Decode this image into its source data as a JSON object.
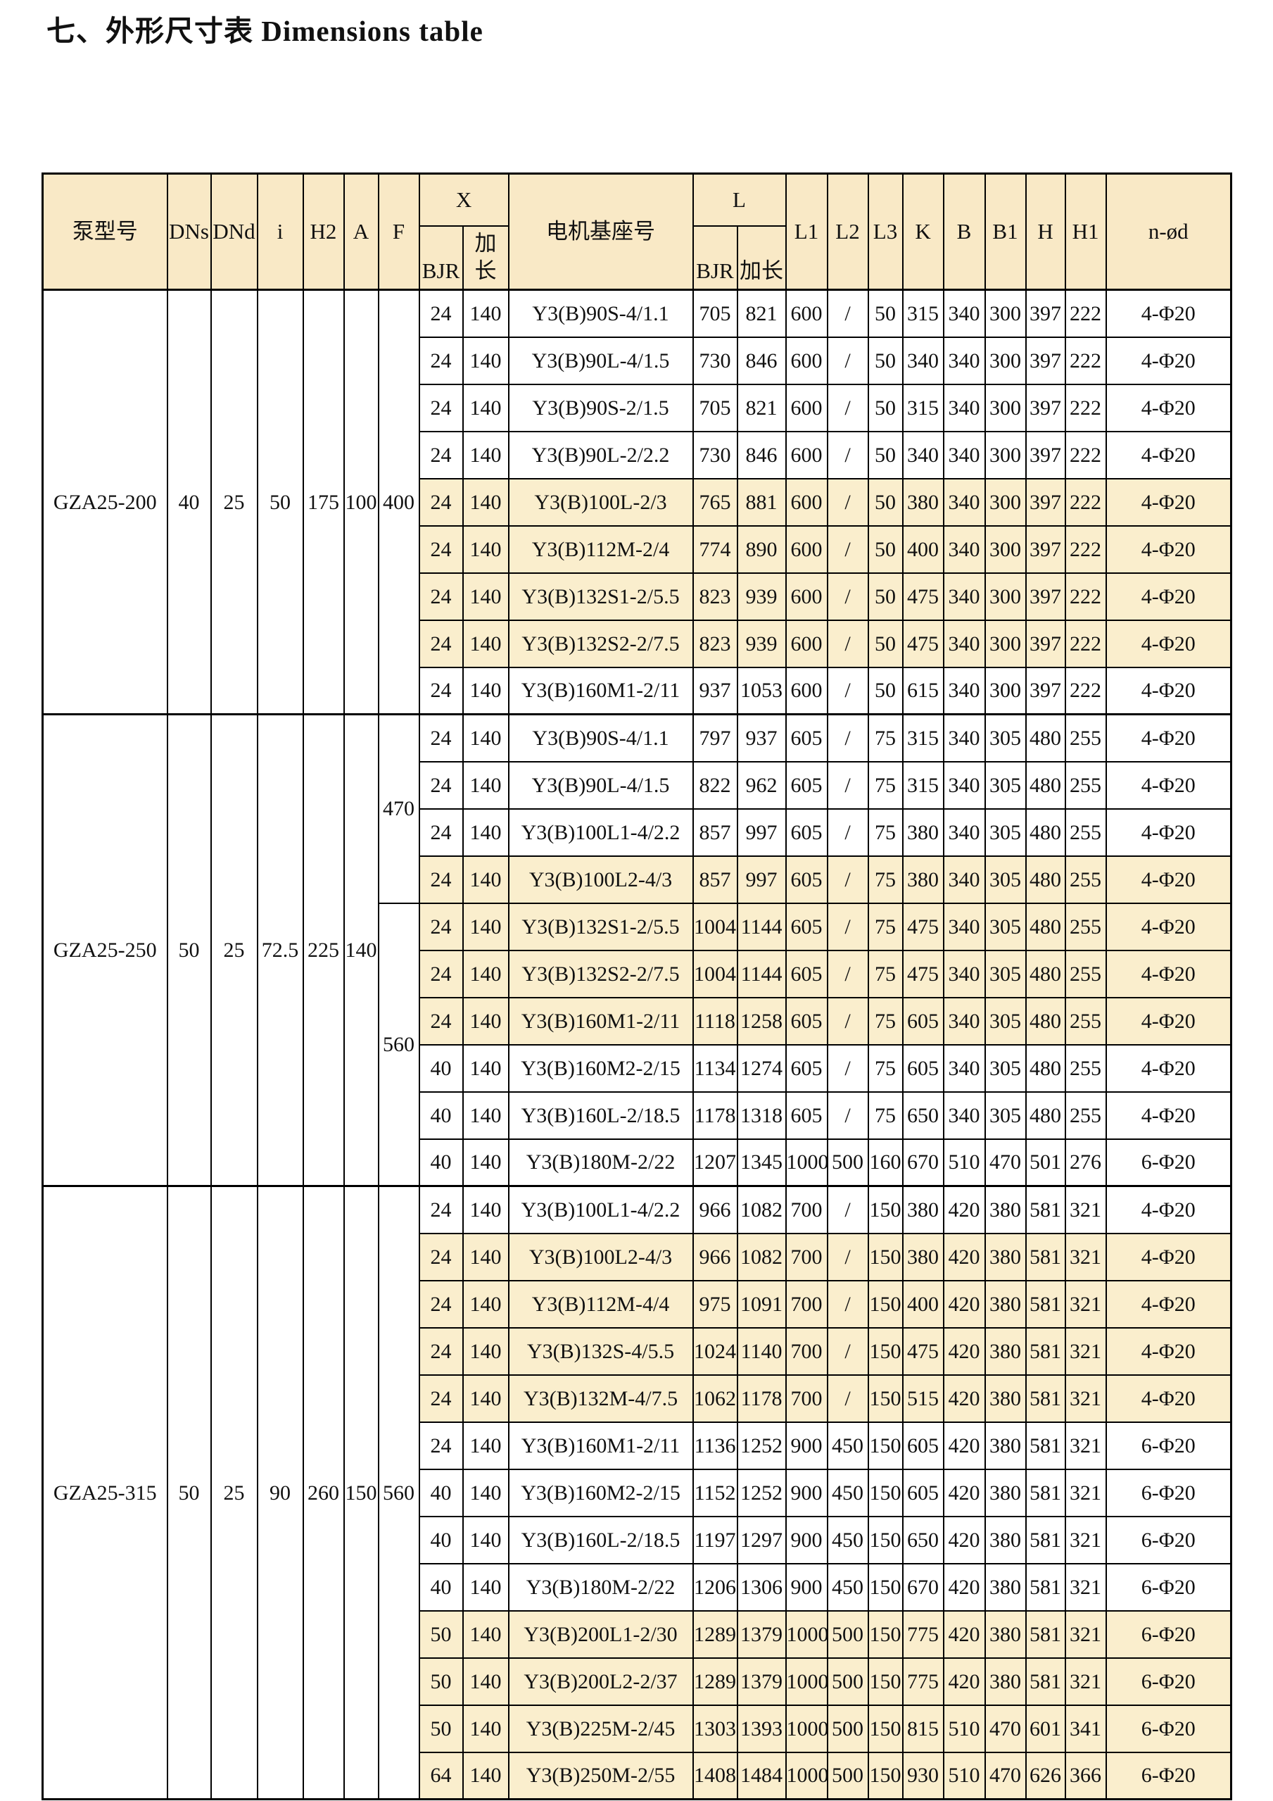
{
  "title": "七、外形尺寸表  Dimensions table",
  "colors": {
    "row_shade": "#FAEECD",
    "header_shade": "#F9E9C6",
    "border": "#000000",
    "background": "#FFFFFF"
  },
  "table": {
    "header": {
      "pump": "泵型号",
      "dns": "DNs",
      "dnd": "DNd",
      "i": "i",
      "h2": "H2",
      "a": "A",
      "f": "F",
      "x": "X",
      "bjr": "BJR",
      "jiachang": "加长",
      "motor": "电机基座号",
      "l": "L",
      "l1": "L1",
      "l2": "L2",
      "l3": "L3",
      "k": "K",
      "b": "B",
      "b1": "B1",
      "h": "H",
      "h1": "H1",
      "nod": "n-ød"
    },
    "groups": [
      {
        "model": "GZA25-200",
        "dns": "40",
        "dnd": "25",
        "i": "50",
        "h2": "175",
        "a": "100",
        "f_spans": [
          {
            "value": "400",
            "rows": 9
          }
        ],
        "rows": [
          {
            "xbjr": "24",
            "xjc": "140",
            "motor": "Y3(B)90S-4/1.1",
            "lbjr": "705",
            "ljc": "821",
            "l1": "600",
            "l2": "/",
            "l3": "50",
            "k": "315",
            "b": "340",
            "b1": "300",
            "h": "397",
            "h1": "222",
            "nod": "4-Φ20",
            "shaded": false
          },
          {
            "xbjr": "24",
            "xjc": "140",
            "motor": "Y3(B)90L-4/1.5",
            "lbjr": "730",
            "ljc": "846",
            "l1": "600",
            "l2": "/",
            "l3": "50",
            "k": "340",
            "b": "340",
            "b1": "300",
            "h": "397",
            "h1": "222",
            "nod": "4-Φ20",
            "shaded": false
          },
          {
            "xbjr": "24",
            "xjc": "140",
            "motor": "Y3(B)90S-2/1.5",
            "lbjr": "705",
            "ljc": "821",
            "l1": "600",
            "l2": "/",
            "l3": "50",
            "k": "315",
            "b": "340",
            "b1": "300",
            "h": "397",
            "h1": "222",
            "nod": "4-Φ20",
            "shaded": false
          },
          {
            "xbjr": "24",
            "xjc": "140",
            "motor": "Y3(B)90L-2/2.2",
            "lbjr": "730",
            "ljc": "846",
            "l1": "600",
            "l2": "/",
            "l3": "50",
            "k": "340",
            "b": "340",
            "b1": "300",
            "h": "397",
            "h1": "222",
            "nod": "4-Φ20",
            "shaded": false
          },
          {
            "xbjr": "24",
            "xjc": "140",
            "motor": "Y3(B)100L-2/3",
            "lbjr": "765",
            "ljc": "881",
            "l1": "600",
            "l2": "/",
            "l3": "50",
            "k": "380",
            "b": "340",
            "b1": "300",
            "h": "397",
            "h1": "222",
            "nod": "4-Φ20",
            "shaded": true
          },
          {
            "xbjr": "24",
            "xjc": "140",
            "motor": "Y3(B)112M-2/4",
            "lbjr": "774",
            "ljc": "890",
            "l1": "600",
            "l2": "/",
            "l3": "50",
            "k": "400",
            "b": "340",
            "b1": "300",
            "h": "397",
            "h1": "222",
            "nod": "4-Φ20",
            "shaded": true
          },
          {
            "xbjr": "24",
            "xjc": "140",
            "motor": "Y3(B)132S1-2/5.5",
            "lbjr": "823",
            "ljc": "939",
            "l1": "600",
            "l2": "/",
            "l3": "50",
            "k": "475",
            "b": "340",
            "b1": "300",
            "h": "397",
            "h1": "222",
            "nod": "4-Φ20",
            "shaded": true
          },
          {
            "xbjr": "24",
            "xjc": "140",
            "motor": "Y3(B)132S2-2/7.5",
            "lbjr": "823",
            "ljc": "939",
            "l1": "600",
            "l2": "/",
            "l3": "50",
            "k": "475",
            "b": "340",
            "b1": "300",
            "h": "397",
            "h1": "222",
            "nod": "4-Φ20",
            "shaded": true
          },
          {
            "xbjr": "24",
            "xjc": "140",
            "motor": "Y3(B)160M1-2/11",
            "lbjr": "937",
            "ljc": "1053",
            "l1": "600",
            "l2": "/",
            "l3": "50",
            "k": "615",
            "b": "340",
            "b1": "300",
            "h": "397",
            "h1": "222",
            "nod": "4-Φ20",
            "shaded": false
          }
        ]
      },
      {
        "model": "GZA25-250",
        "dns": "50",
        "dnd": "25",
        "i": "72.5",
        "h2": "225",
        "a": "140",
        "f_spans": [
          {
            "value": "470",
            "rows": 4
          },
          {
            "value": "560",
            "rows": 6
          }
        ],
        "rows": [
          {
            "xbjr": "24",
            "xjc": "140",
            "motor": "Y3(B)90S-4/1.1",
            "lbjr": "797",
            "ljc": "937",
            "l1": "605",
            "l2": "/",
            "l3": "75",
            "k": "315",
            "b": "340",
            "b1": "305",
            "h": "480",
            "h1": "255",
            "nod": "4-Φ20",
            "shaded": false
          },
          {
            "xbjr": "24",
            "xjc": "140",
            "motor": "Y3(B)90L-4/1.5",
            "lbjr": "822",
            "ljc": "962",
            "l1": "605",
            "l2": "/",
            "l3": "75",
            "k": "315",
            "b": "340",
            "b1": "305",
            "h": "480",
            "h1": "255",
            "nod": "4-Φ20",
            "shaded": false
          },
          {
            "xbjr": "24",
            "xjc": "140",
            "motor": "Y3(B)100L1-4/2.2",
            "lbjr": "857",
            "ljc": "997",
            "l1": "605",
            "l2": "/",
            "l3": "75",
            "k": "380",
            "b": "340",
            "b1": "305",
            "h": "480",
            "h1": "255",
            "nod": "4-Φ20",
            "shaded": false
          },
          {
            "xbjr": "24",
            "xjc": "140",
            "motor": "Y3(B)100L2-4/3",
            "lbjr": "857",
            "ljc": "997",
            "l1": "605",
            "l2": "/",
            "l3": "75",
            "k": "380",
            "b": "340",
            "b1": "305",
            "h": "480",
            "h1": "255",
            "nod": "4-Φ20",
            "shaded": true
          },
          {
            "xbjr": "24",
            "xjc": "140",
            "motor": "Y3(B)132S1-2/5.5",
            "lbjr": "1004",
            "ljc": "1144",
            "l1": "605",
            "l2": "/",
            "l3": "75",
            "k": "475",
            "b": "340",
            "b1": "305",
            "h": "480",
            "h1": "255",
            "nod": "4-Φ20",
            "shaded": true
          },
          {
            "xbjr": "24",
            "xjc": "140",
            "motor": "Y3(B)132S2-2/7.5",
            "lbjr": "1004",
            "ljc": "1144",
            "l1": "605",
            "l2": "/",
            "l3": "75",
            "k": "475",
            "b": "340",
            "b1": "305",
            "h": "480",
            "h1": "255",
            "nod": "4-Φ20",
            "shaded": true
          },
          {
            "xbjr": "24",
            "xjc": "140",
            "motor": "Y3(B)160M1-2/11",
            "lbjr": "1118",
            "ljc": "1258",
            "l1": "605",
            "l2": "/",
            "l3": "75",
            "k": "605",
            "b": "340",
            "b1": "305",
            "h": "480",
            "h1": "255",
            "nod": "4-Φ20",
            "shaded": true
          },
          {
            "xbjr": "40",
            "xjc": "140",
            "motor": "Y3(B)160M2-2/15",
            "lbjr": "1134",
            "ljc": "1274",
            "l1": "605",
            "l2": "/",
            "l3": "75",
            "k": "605",
            "b": "340",
            "b1": "305",
            "h": "480",
            "h1": "255",
            "nod": "4-Φ20",
            "shaded": false
          },
          {
            "xbjr": "40",
            "xjc": "140",
            "motor": "Y3(B)160L-2/18.5",
            "lbjr": "1178",
            "ljc": "1318",
            "l1": "605",
            "l2": "/",
            "l3": "75",
            "k": "650",
            "b": "340",
            "b1": "305",
            "h": "480",
            "h1": "255",
            "nod": "4-Φ20",
            "shaded": false
          },
          {
            "xbjr": "40",
            "xjc": "140",
            "motor": "Y3(B)180M-2/22",
            "lbjr": "1207",
            "ljc": "1345",
            "l1": "1000",
            "l2": "500",
            "l3": "160",
            "k": "670",
            "b": "510",
            "b1": "470",
            "h": "501",
            "h1": "276",
            "nod": "6-Φ20",
            "shaded": false
          }
        ]
      },
      {
        "model": "GZA25-315",
        "dns": "50",
        "dnd": "25",
        "i": "90",
        "h2": "260",
        "a": "150",
        "f_spans": [
          {
            "value": "560",
            "rows": 13
          }
        ],
        "rows": [
          {
            "xbjr": "24",
            "xjc": "140",
            "motor": "Y3(B)100L1-4/2.2",
            "lbjr": "966",
            "ljc": "1082",
            "l1": "700",
            "l2": "/",
            "l3": "150",
            "k": "380",
            "b": "420",
            "b1": "380",
            "h": "581",
            "h1": "321",
            "nod": "4-Φ20",
            "shaded": false
          },
          {
            "xbjr": "24",
            "xjc": "140",
            "motor": "Y3(B)100L2-4/3",
            "lbjr": "966",
            "ljc": "1082",
            "l1": "700",
            "l2": "/",
            "l3": "150",
            "k": "380",
            "b": "420",
            "b1": "380",
            "h": "581",
            "h1": "321",
            "nod": "4-Φ20",
            "shaded": true
          },
          {
            "xbjr": "24",
            "xjc": "140",
            "motor": "Y3(B)112M-4/4",
            "lbjr": "975",
            "ljc": "1091",
            "l1": "700",
            "l2": "/",
            "l3": "150",
            "k": "400",
            "b": "420",
            "b1": "380",
            "h": "581",
            "h1": "321",
            "nod": "4-Φ20",
            "shaded": true
          },
          {
            "xbjr": "24",
            "xjc": "140",
            "motor": "Y3(B)132S-4/5.5",
            "lbjr": "1024",
            "ljc": "1140",
            "l1": "700",
            "l2": "/",
            "l3": "150",
            "k": "475",
            "b": "420",
            "b1": "380",
            "h": "581",
            "h1": "321",
            "nod": "4-Φ20",
            "shaded": true
          },
          {
            "xbjr": "24",
            "xjc": "140",
            "motor": "Y3(B)132M-4/7.5",
            "lbjr": "1062",
            "ljc": "1178",
            "l1": "700",
            "l2": "/",
            "l3": "150",
            "k": "515",
            "b": "420",
            "b1": "380",
            "h": "581",
            "h1": "321",
            "nod": "4-Φ20",
            "shaded": true
          },
          {
            "xbjr": "24",
            "xjc": "140",
            "motor": "Y3(B)160M1-2/11",
            "lbjr": "1136",
            "ljc": "1252",
            "l1": "900",
            "l2": "450",
            "l3": "150",
            "k": "605",
            "b": "420",
            "b1": "380",
            "h": "581",
            "h1": "321",
            "nod": "6-Φ20",
            "shaded": false
          },
          {
            "xbjr": "40",
            "xjc": "140",
            "motor": "Y3(B)160M2-2/15",
            "lbjr": "1152",
            "ljc": "1252",
            "l1": "900",
            "l2": "450",
            "l3": "150",
            "k": "605",
            "b": "420",
            "b1": "380",
            "h": "581",
            "h1": "321",
            "nod": "6-Φ20",
            "shaded": false
          },
          {
            "xbjr": "40",
            "xjc": "140",
            "motor": "Y3(B)160L-2/18.5",
            "lbjr": "1197",
            "ljc": "1297",
            "l1": "900",
            "l2": "450",
            "l3": "150",
            "k": "650",
            "b": "420",
            "b1": "380",
            "h": "581",
            "h1": "321",
            "nod": "6-Φ20",
            "shaded": false
          },
          {
            "xbjr": "40",
            "xjc": "140",
            "motor": "Y3(B)180M-2/22",
            "lbjr": "1206",
            "ljc": "1306",
            "l1": "900",
            "l2": "450",
            "l3": "150",
            "k": "670",
            "b": "420",
            "b1": "380",
            "h": "581",
            "h1": "321",
            "nod": "6-Φ20",
            "shaded": false
          },
          {
            "xbjr": "50",
            "xjc": "140",
            "motor": "Y3(B)200L1-2/30",
            "lbjr": "1289",
            "ljc": "1379",
            "l1": "1000",
            "l2": "500",
            "l3": "150",
            "k": "775",
            "b": "420",
            "b1": "380",
            "h": "581",
            "h1": "321",
            "nod": "6-Φ20",
            "shaded": true
          },
          {
            "xbjr": "50",
            "xjc": "140",
            "motor": "Y3(B)200L2-2/37",
            "lbjr": "1289",
            "ljc": "1379",
            "l1": "1000",
            "l2": "500",
            "l3": "150",
            "k": "775",
            "b": "420",
            "b1": "380",
            "h": "581",
            "h1": "321",
            "nod": "6-Φ20",
            "shaded": true
          },
          {
            "xbjr": "50",
            "xjc": "140",
            "motor": "Y3(B)225M-2/45",
            "lbjr": "1303",
            "ljc": "1393",
            "l1": "1000",
            "l2": "500",
            "l3": "150",
            "k": "815",
            "b": "510",
            "b1": "470",
            "h": "601",
            "h1": "341",
            "nod": "6-Φ20",
            "shaded": true
          },
          {
            "xbjr": "64",
            "xjc": "140",
            "motor": "Y3(B)250M-2/55",
            "lbjr": "1408",
            "ljc": "1484",
            "l1": "1000",
            "l2": "500",
            "l3": "150",
            "k": "930",
            "b": "510",
            "b1": "470",
            "h": "626",
            "h1": "366",
            "nod": "6-Φ20",
            "shaded": true
          }
        ]
      }
    ]
  }
}
